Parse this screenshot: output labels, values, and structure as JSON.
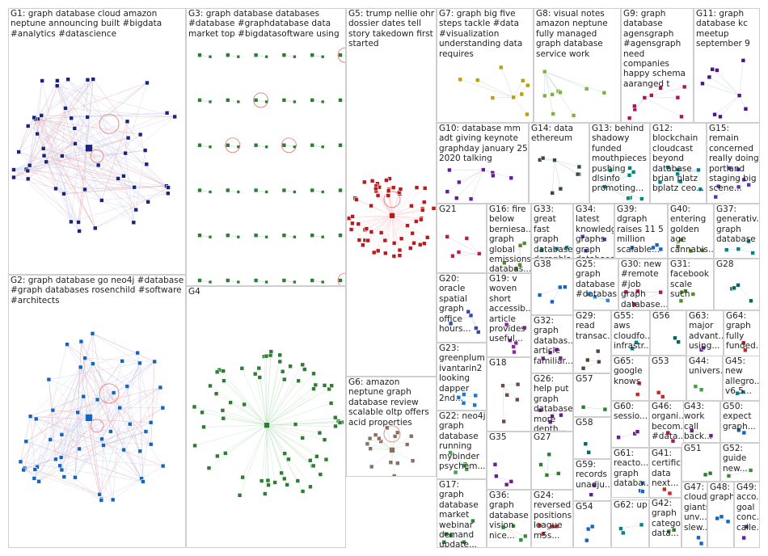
{
  "groups": [
    {
      "id": "G1",
      "label": "G1: graph database cloud amazon neptune announcing built #bigdata #analytics #datascience",
      "color": "#1a237e",
      "shape": "dense"
    },
    {
      "id": "G2",
      "label": "G2: graph database go neo4j #database #graph databases rosenchild #software #architects",
      "color": "#1565c0",
      "shape": "dense"
    },
    {
      "id": "G3",
      "label": "G3: graph database databases #database #graphdatabase data market top #bigdatasoftware using",
      "color": "#2e7d32",
      "shape": "grid"
    },
    {
      "id": "G4",
      "label": "G4",
      "color": "#2e7d32",
      "shape": "star"
    },
    {
      "id": "G5",
      "label": "G5: trump nellie ohr dossier dates tell story takedown first started",
      "color": "#b71c1c",
      "shape": "star"
    },
    {
      "id": "G6",
      "label": "G6: amazon neptune graph database review scalable oltp offers acid properties",
      "color": "#8d6e63",
      "shape": "star"
    },
    {
      "id": "G7",
      "label": "G7: graph big five steps tackle #data #visualization understanding data requires",
      "color": "#c0a000",
      "shape": "small"
    },
    {
      "id": "G8",
      "label": "G8: visual notes amazon neptune fully managed graph database service work",
      "color": "#7cb342",
      "shape": "small"
    },
    {
      "id": "G9",
      "label": "G9: graph database agensgraph #agensgraph need companies happy schema aaranged t",
      "color": "#ad1457",
      "shape": "small"
    },
    {
      "id": "G10",
      "label": "G10: database mm adt giving keynote graphday january 25 2020 talking",
      "color": "#6a1b9a",
      "shape": "small"
    },
    {
      "id": "G11",
      "label": "G11: graph database kc meetup september 9",
      "color": "#4a148c",
      "shape": "small"
    },
    {
      "id": "G12",
      "label": "G12: blockchain cloudcast beyond database brian platz bplatz ceo...",
      "color": "#00838f",
      "shape": "small"
    },
    {
      "id": "G13",
      "label": "G13: behind shadowy funded mouthpieces pushing dlsinfo promoting...",
      "color": "#00897b",
      "shape": "small"
    },
    {
      "id": "G14",
      "label": "G14: data ethereum",
      "color": "#37474f",
      "shape": "small"
    },
    {
      "id": "G15",
      "label": "G15: remain concerned really doing portland staging big scene...",
      "color": "#5e35b1",
      "shape": "small"
    },
    {
      "id": "G16",
      "label": "G16: fire below berniesa... graph global emissions databas...",
      "color": "#558b2f",
      "shape": "small"
    },
    {
      "id": "G17",
      "label": "G17: graph database market webinar demand update...",
      "color": "#2e7d32",
      "shape": "small"
    },
    {
      "id": "G18",
      "label": "G18",
      "color": "#6d4c41",
      "shape": "small"
    },
    {
      "id": "G19",
      "label": "G19: v woven short accessib... article provides useful...",
      "color": "#8e24aa",
      "shape": "small"
    },
    {
      "id": "G20",
      "label": "G20: oracle spatial graph office hours...",
      "color": "#3949ab",
      "shape": "small"
    },
    {
      "id": "G21",
      "label": "G21",
      "color": "#c2185b",
      "shape": "small"
    },
    {
      "id": "G22",
      "label": "G22: neo4j graph database running mybinder psychem...",
      "color": "#43a047",
      "shape": "small"
    },
    {
      "id": "G23",
      "label": "G23: greenplum ivantarin2 looking dapper 2nd...",
      "color": "#1976d2",
      "shape": "small"
    },
    {
      "id": "G24",
      "label": "G24: reversed positions league m5s...",
      "color": "#c62828",
      "shape": "small"
    },
    {
      "id": "G25",
      "label": "G25: graph database #databas...",
      "color": "#1e88e5",
      "shape": "small"
    },
    {
      "id": "G26",
      "label": "G26: help put graph database more depth...",
      "color": "#6a1b9a",
      "shape": "small"
    },
    {
      "id": "G27",
      "label": "G27",
      "color": "#2e7d32",
      "shape": "small"
    },
    {
      "id": "G28",
      "label": "G28",
      "color": "#00695c",
      "shape": "small"
    },
    {
      "id": "G29",
      "label": "G29: read transac...",
      "color": "#5d4037",
      "shape": "small"
    },
    {
      "id": "G30",
      "label": "G30: new #remote #job graph database...",
      "color": "#ad1457",
      "shape": "small"
    },
    {
      "id": "G31",
      "label": "G31: facebook scale such",
      "color": "#558b2f",
      "shape": "small"
    },
    {
      "id": "G32",
      "label": "G32: graph databas... article familiar...",
      "color": "#7b1fa2",
      "shape": "small"
    },
    {
      "id": "G33",
      "label": "G33: great fast graph database dgraphla... folks...",
      "color": "#00838f",
      "shape": "small"
    },
    {
      "id": "G34",
      "label": "G34: latest knowledge graphs graph database...",
      "color": "#3949ab",
      "shape": "small"
    },
    {
      "id": "G35",
      "label": "G35",
      "color": "#6a1b9a",
      "shape": "small"
    },
    {
      "id": "G36",
      "label": "G36: graph database vision nice...",
      "color": "#388e3c",
      "shape": "small"
    },
    {
      "id": "G37",
      "label": "G37: generativ... graph database",
      "color": "#00838f",
      "shape": "small"
    },
    {
      "id": "G38",
      "label": "G38",
      "color": "#1565c0",
      "shape": "small"
    },
    {
      "id": "G39",
      "label": "G39: dgraph raises 11 5 million scalable...",
      "color": "#1565c0",
      "shape": "small"
    },
    {
      "id": "G40",
      "label": "G40: entering golden age cannabis...",
      "color": "#558b2f",
      "shape": "small"
    },
    {
      "id": "G41",
      "label": "G41: certific... data next...",
      "color": "#c62828",
      "shape": "small"
    },
    {
      "id": "G42",
      "label": "G42: graph catego... data...",
      "color": "#2e7d32",
      "shape": "small"
    },
    {
      "id": "G43",
      "label": "G43: work call back...",
      "color": "#6a1b9a",
      "shape": "small"
    },
    {
      "id": "G44",
      "label": "G44: univers...",
      "color": "#43a047",
      "shape": "small"
    },
    {
      "id": "G45",
      "label": "G45: new allegro... v6 5...",
      "color": "#00838f",
      "shape": "small"
    },
    {
      "id": "G46",
      "label": "G46: organi... becom... #data...",
      "color": "#ad1457",
      "shape": "small"
    },
    {
      "id": "G47",
      "label": "G47: cloud giants unv... slew...",
      "color": "#1565c0",
      "shape": "small"
    },
    {
      "id": "G48",
      "label": "G48: graph",
      "color": "#1565c0",
      "shape": "small"
    },
    {
      "id": "G49",
      "label": "G49: acco... goal conc... calle...",
      "color": "#6a1b9a",
      "shape": "small"
    },
    {
      "id": "G50",
      "label": "G50: expect graph...",
      "color": "#1565c0",
      "shape": "small"
    },
    {
      "id": "G51",
      "label": "G51",
      "color": "#2e7d32",
      "shape": "small"
    },
    {
      "id": "G52",
      "label": "G52: guide new...",
      "color": "#388e3c",
      "shape": "small"
    },
    {
      "id": "G53",
      "label": "G53",
      "color": "#c62828",
      "shape": "small"
    },
    {
      "id": "G54",
      "label": "G54",
      "color": "#1565c0",
      "shape": "small"
    },
    {
      "id": "G55",
      "label": "G55: aws cloudfo... infrastr...",
      "color": "#00838f",
      "shape": "small"
    },
    {
      "id": "G56",
      "label": "G56",
      "color": "#00695c",
      "shape": "small"
    },
    {
      "id": "G57",
      "label": "G57",
      "color": "#2e7d32",
      "shape": "small"
    },
    {
      "id": "G58",
      "label": "G58",
      "color": "#00695c",
      "shape": "small"
    },
    {
      "id": "G59",
      "label": "G59: records unadju...",
      "color": "#6a1b9a",
      "shape": "small"
    },
    {
      "id": "G60",
      "label": "G60: sessio...",
      "color": "#6a1b9a",
      "shape": "small"
    },
    {
      "id": "G61",
      "label": "G61: reacto... graph databa...",
      "color": "#1565c0",
      "shape": "small"
    },
    {
      "id": "G62",
      "label": "G62: up",
      "color": "#00838f",
      "shape": "small"
    },
    {
      "id": "G63",
      "label": "G63: major advant... using...",
      "color": "#6a1b9a",
      "shape": "small"
    },
    {
      "id": "G64",
      "label": "G64: graph fully funded...",
      "color": "#c62828",
      "shape": "small"
    },
    {
      "id": "G65",
      "label": "G65: google knows",
      "color": "#c62828",
      "shape": "small"
    }
  ]
}
